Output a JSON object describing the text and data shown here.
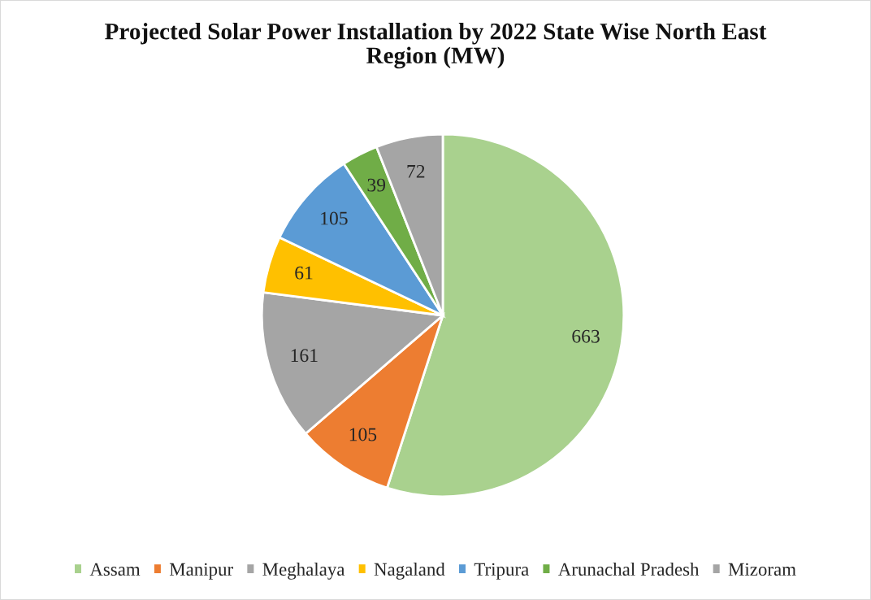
{
  "chart_data": {
    "type": "pie",
    "title": "Projected Solar Power Installation by 2022 State Wise North East Region (MW)",
    "categories": [
      "Assam",
      "Manipur",
      "Meghalaya",
      "Nagaland",
      "Tripura",
      "Arunachal Pradesh",
      "Mizoram"
    ],
    "values": [
      663,
      105,
      161,
      61,
      105,
      39,
      72
    ],
    "colors": [
      "#a9d18e",
      "#ed7d31",
      "#a5a5a5",
      "#ffc000",
      "#5b9bd5",
      "#70ad47",
      "#a5a5a5"
    ],
    "data_labels": true,
    "legend": "bottom"
  }
}
